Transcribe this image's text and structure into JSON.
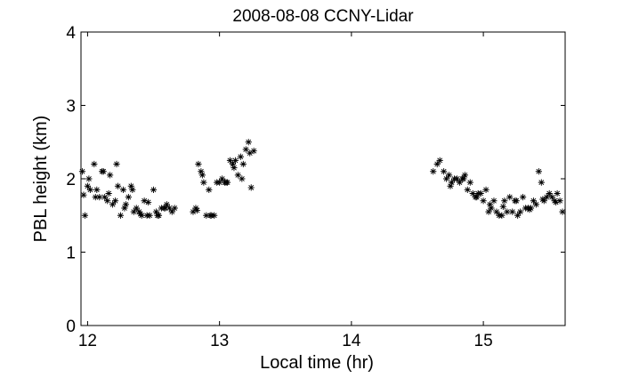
{
  "chart_data": {
    "type": "scatter",
    "title": "2008-08-08 CCNY-Lidar",
    "xlabel": "Local time (hr)",
    "ylabel": "PBL height (km)",
    "xlim": [
      11.95,
      15.62
    ],
    "ylim": [
      0,
      4
    ],
    "xticks": [
      12,
      13,
      14,
      15
    ],
    "yticks": [
      0,
      1,
      2,
      3,
      4
    ],
    "grid": false,
    "marker": "*",
    "color": "#000000",
    "series": [
      {
        "x": [
          11.96,
          11.98,
          12.0,
          12.02,
          12.05,
          12.07,
          12.09,
          12.11,
          12.13,
          12.15,
          12.17,
          12.19,
          12.21,
          12.23,
          12.25,
          12.27,
          12.29,
          12.31,
          12.33,
          12.35,
          12.37,
          12.39,
          12.41,
          12.43,
          12.45,
          12.47,
          12.5,
          12.52,
          12.54,
          12.56,
          12.58,
          12.6,
          12.62,
          12.64,
          12.66,
          12.8,
          12.82,
          12.84,
          12.86,
          12.88,
          12.9,
          12.92,
          12.94,
          12.96,
          12.98,
          13.0,
          13.02,
          13.04,
          13.06,
          13.08,
          13.1,
          13.12,
          13.14,
          13.16,
          13.18,
          13.2,
          13.22,
          13.24,
          13.26,
          11.97,
          12.01,
          12.06,
          12.12,
          12.16,
          12.22,
          12.28,
          12.34,
          12.4,
          12.46,
          12.53,
          12.59,
          12.83,
          12.87,
          12.93,
          13.05,
          13.11,
          13.17,
          13.23
        ],
        "y": [
          2.1,
          1.5,
          1.9,
          1.85,
          2.2,
          1.85,
          1.75,
          2.1,
          1.75,
          1.7,
          2.05,
          1.65,
          1.7,
          1.9,
          1.5,
          1.85,
          1.65,
          1.75,
          1.9,
          1.55,
          1.6,
          1.55,
          1.5,
          1.7,
          1.5,
          1.5,
          1.85,
          1.55,
          1.5,
          1.6,
          1.6,
          1.65,
          1.6,
          1.55,
          1.6,
          1.55,
          1.6,
          2.2,
          2.1,
          1.95,
          1.5,
          1.85,
          1.5,
          1.5,
          1.95,
          1.95,
          2.0,
          1.95,
          1.95,
          2.25,
          2.2,
          2.25,
          2.05,
          2.3,
          2.2,
          2.4,
          2.5,
          1.88,
          2.38,
          1.78,
          2.0,
          1.75,
          2.1,
          1.8,
          2.2,
          1.6,
          1.85,
          1.52,
          1.68,
          1.5,
          1.6,
          1.57,
          2.05,
          1.5,
          1.95,
          2.15,
          2.0,
          2.35
        ]
      },
      {
        "x": [
          14.62,
          14.65,
          14.67,
          14.7,
          14.72,
          14.74,
          14.76,
          14.78,
          14.8,
          14.82,
          14.84,
          14.86,
          14.88,
          14.9,
          14.92,
          14.94,
          14.96,
          14.98,
          15.0,
          15.02,
          15.04,
          15.06,
          15.08,
          15.1,
          15.12,
          15.14,
          15.16,
          15.18,
          15.2,
          15.22,
          15.24,
          15.26,
          15.28,
          15.3,
          15.32,
          15.34,
          15.36,
          15.38,
          15.4,
          15.42,
          15.44,
          15.46,
          15.48,
          15.5,
          15.52,
          15.54,
          15.56,
          15.58,
          15.6,
          14.75,
          14.85,
          14.95,
          15.05,
          15.15,
          15.25,
          15.35,
          15.45,
          15.55
        ],
        "y": [
          2.1,
          2.2,
          2.25,
          2.1,
          2.0,
          2.05,
          1.95,
          2.0,
          2.0,
          1.95,
          2.0,
          2.05,
          1.85,
          1.95,
          1.8,
          1.75,
          1.8,
          1.8,
          1.7,
          1.85,
          1.55,
          1.6,
          1.7,
          1.55,
          1.5,
          1.5,
          1.7,
          1.55,
          1.75,
          1.55,
          1.7,
          1.5,
          1.55,
          1.75,
          1.6,
          1.6,
          1.6,
          1.7,
          1.65,
          2.1,
          1.95,
          1.7,
          1.75,
          1.8,
          1.75,
          1.7,
          1.8,
          1.7,
          1.55,
          1.9,
          2.0,
          1.75,
          1.65,
          1.62,
          1.7,
          1.58,
          1.72,
          1.68
        ]
      }
    ]
  }
}
